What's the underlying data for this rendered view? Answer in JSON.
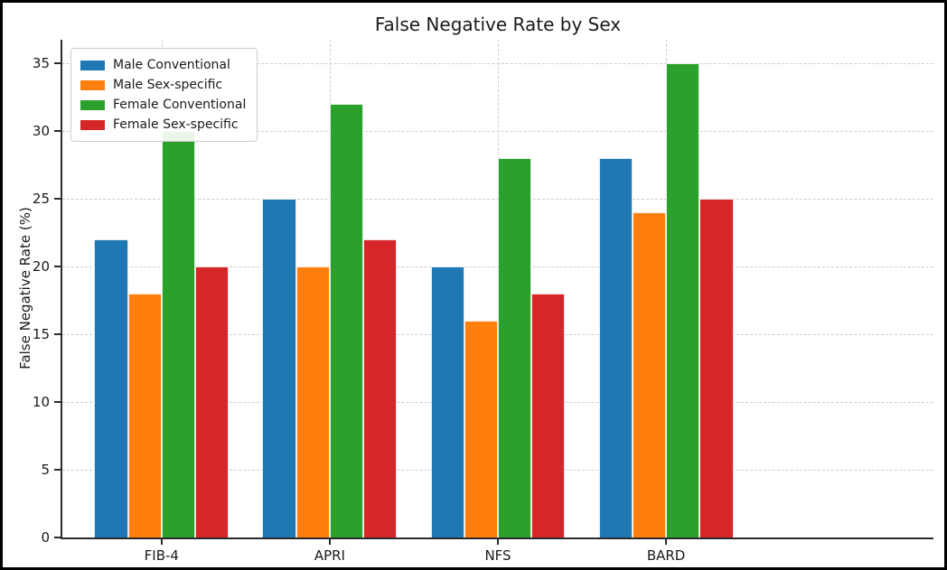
{
  "figure": {
    "background": "#ffffff",
    "border_color": "#000000",
    "text_color": "#1a1a1a",
    "spine_color": "#2b2b2b",
    "gridline_color": "#cdcdcd"
  },
  "chart_data": {
    "type": "bar",
    "title": "False Negative Rate by Sex",
    "xlabel": "",
    "ylabel": "False Negative Rate (%)",
    "categories": [
      "FIB-4",
      "APRI",
      "NFS",
      "BARD"
    ],
    "series": [
      {
        "name": "Male Conventional",
        "color": "#1f77b4",
        "values": [
          22,
          25,
          20,
          28
        ]
      },
      {
        "name": "Male Sex-specific",
        "color": "#ff7f0e",
        "values": [
          18,
          20,
          16,
          24
        ]
      },
      {
        "name": "Female Conventional",
        "color": "#2ca02c",
        "values": [
          30,
          32,
          28,
          35
        ]
      },
      {
        "name": "Female Sex-specific",
        "color": "#d62728",
        "values": [
          20,
          22,
          18,
          25
        ]
      }
    ],
    "yticks": [
      0,
      5,
      10,
      15,
      20,
      25,
      30,
      35
    ],
    "ylim": [
      0,
      36.75
    ],
    "grid": true,
    "grid_style": "dashed",
    "legend_position": "upper-left",
    "bar_width_units": 0.2,
    "group_spacing_units": 1
  }
}
